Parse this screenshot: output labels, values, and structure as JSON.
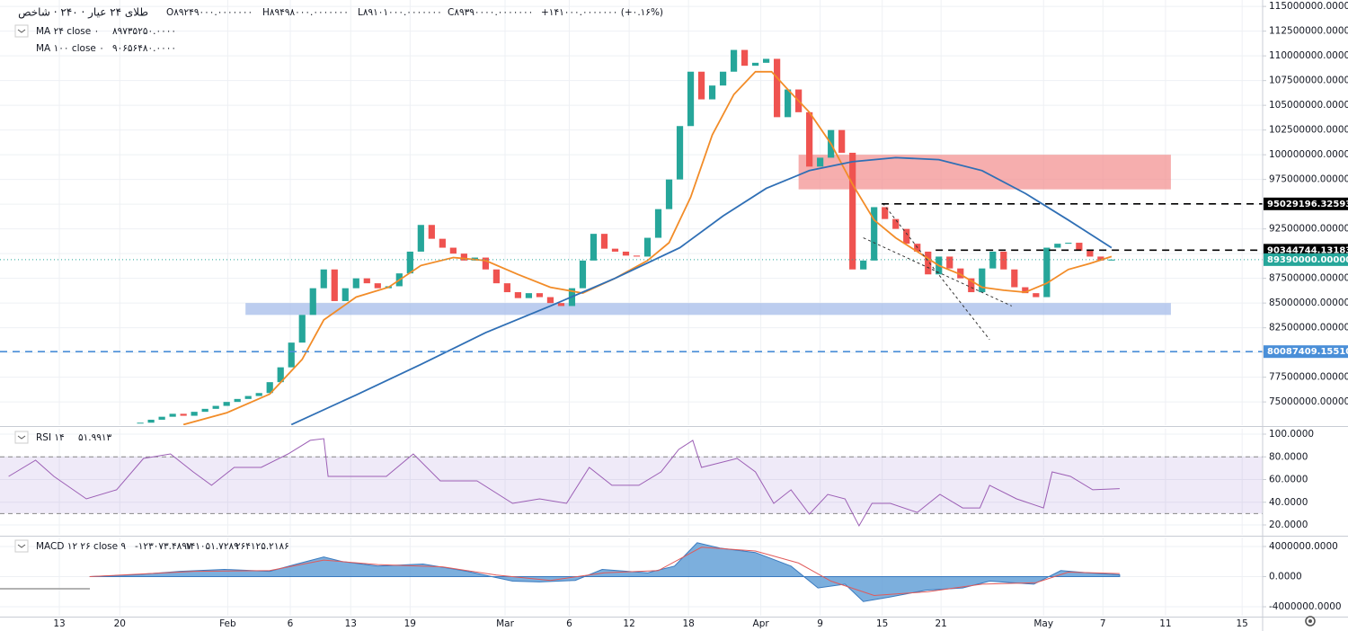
{
  "chart_data": [
    {
      "type": "candlestick",
      "title": "طلای ۲۴ عیار · ۲۴۰ · شاخص",
      "ohlc_text": [
        "O۸۹۲۴۹۰۰۰.۰۰۰۰۰۰۰",
        "H۸۹۴۹۸۰۰۰.۰۰۰۰۰۰۰",
        "L۸۹۱۰۱۰۰۰.۰۰۰۰۰۰۰",
        "C۸۹۳۹۰۰۰۰.۰۰۰۰۰۰۰",
        "+۱۴۱۰۰۰.۰۰۰۰۰۰۰ (+۰.۱۶%)"
      ],
      "xlim": [
        -13,
        104
      ],
      "ylim": [
        72650000,
        115650000
      ],
      "yticks": [
        {
          "value": 75000000,
          "label": "75000000.0000000"
        },
        {
          "value": 77500000,
          "label": "77500000.0000000"
        },
        {
          "value": 80000000,
          "label": "80000000.0000000"
        },
        {
          "value": 82500000,
          "label": "82500000.0000000"
        },
        {
          "value": 85000000,
          "label": "85000000.0000000"
        },
        {
          "value": 87500000,
          "label": "87500000.0000000"
        },
        {
          "value": 90000000,
          "label": "90000000.0000000"
        },
        {
          "value": 92500000,
          "label": "92500000.0000000"
        },
        {
          "value": 95000000,
          "label": "95000000.0000000"
        },
        {
          "value": 97500000,
          "label": "97500000.0000000"
        },
        {
          "value": 100000000,
          "label": "100000000.0000000"
        },
        {
          "value": 102500000,
          "label": "102500000.0000000"
        },
        {
          "value": 105000000,
          "label": "105000000.0000000"
        },
        {
          "value": 107500000,
          "label": "107500000.0000000"
        },
        {
          "value": 110000000,
          "label": "110000000.0000000"
        },
        {
          "value": 112500000,
          "label": "112500000.0000000"
        },
        {
          "value": 115000000,
          "label": "115000000.0000000"
        }
      ],
      "up_color": "#26a69a",
      "down_color": "#ef5350",
      "close": [
        72900000,
        73200000,
        73500000,
        73800000,
        73600000,
        74000000,
        74300000,
        74600000,
        75000000,
        75300000,
        75600000,
        75900000,
        77000000,
        78500000,
        81000000,
        83800000,
        86500000,
        88400000,
        85200000,
        86500000,
        87500000,
        87000000,
        86500000,
        86700000,
        88000000,
        90200000,
        92900000,
        91500000,
        90600000,
        90000000,
        89300000,
        89600000,
        88400000,
        87000000,
        86100000,
        85500000,
        86000000,
        85600000,
        85000000,
        84700000,
        86500000,
        89300000,
        92000000,
        90500000,
        90200000,
        89800000,
        89700000,
        91600000,
        94500000,
        97500000,
        102900000,
        108400000,
        105600000,
        107000000,
        108400000,
        110600000,
        109000000,
        109300000,
        109700000,
        103800000,
        106600000,
        104300000,
        98800000,
        99700000,
        102500000,
        100200000,
        88400000,
        89300000,
        94700000,
        93500000,
        92500000,
        91000000,
        90200000,
        87900000,
        89700000,
        88500000,
        87500000,
        86100000,
        88500000,
        90200000,
        88400000,
        86600000,
        86000000,
        85600000,
        90600000,
        91000000,
        91100000,
        90300000,
        89700000,
        89300000,
        89400000
      ],
      "series": [
        {
          "name": "MA ۲۴ close ۰",
          "value_label": "۸۹۷۳۵۲۵۰.۰۰۰۰",
          "color": "#f28c28",
          "x": [
            4,
            8,
            12,
            15,
            17,
            20,
            23,
            26,
            29,
            32,
            35,
            38,
            41,
            44,
            47,
            49,
            51,
            53,
            55,
            57,
            58.5,
            60,
            62,
            64,
            66,
            68,
            70,
            72,
            74,
            76,
            78,
            80,
            82,
            84,
            86,
            88,
            90
          ],
          "values": [
            72700000,
            73900000,
            75800000,
            79300000,
            83300000,
            85600000,
            86600000,
            88800000,
            89600000,
            89300000,
            87900000,
            86600000,
            86000000,
            87500000,
            89300000,
            91100000,
            95700000,
            102000000,
            106100000,
            108400000,
            108400000,
            106600000,
            104300000,
            101100000,
            97000000,
            93400000,
            91600000,
            90200000,
            88800000,
            87900000,
            86600000,
            86300000,
            86100000,
            87000000,
            88400000,
            89000000,
            89700000
          ]
        },
        {
          "name": "MA ۱۰۰ close ۰",
          "value_label": "۹۰۶۵۶۴۸۰.۰۰۰۰",
          "color": "#2f6fb5",
          "x": [
            14,
            20,
            26,
            32,
            38,
            44,
            50,
            54,
            58,
            62,
            66,
            70,
            74,
            78,
            82,
            86,
            90
          ],
          "values": [
            72700000,
            75700000,
            78800000,
            82000000,
            84700000,
            87500000,
            90600000,
            93800000,
            96600000,
            98400000,
            99300000,
            99700000,
            99500000,
            98400000,
            96100000,
            93400000,
            90600000
          ]
        }
      ],
      "zones": [
        {
          "x": [
            61,
            95.5
          ],
          "y": [
            96500000,
            100000000
          ],
          "color": "#f28b8b"
        },
        {
          "x": [
            9.75,
            95.5
          ],
          "y": [
            83800000,
            85000000
          ],
          "color": "#9fb8e8"
        }
      ],
      "levels": [
        {
          "value": 95029196.3259314,
          "label": "95029196.3259314",
          "x_start": 68.7,
          "color": "#000000",
          "dash": "8 6"
        },
        {
          "value": 90344744.1318353,
          "label": "90344744.1318353",
          "x_start": 73.7,
          "color": "#000000",
          "dash": "8 6"
        },
        {
          "value": 89390000,
          "label": "89390000.0000000",
          "color": "#26a69a",
          "dash": "1 3"
        },
        {
          "value": 80087409.1551078,
          "label": "80087409.1551078",
          "color": "#4a8fd8",
          "dash": "8 6"
        }
      ],
      "trendlines": [
        {
          "x": [
            68.8,
            78.7
          ],
          "y": [
            95100000,
            81300000
          ]
        },
        {
          "x": [
            67,
            80.75
          ],
          "y": [
            91600000,
            84700000
          ]
        }
      ]
    },
    {
      "type": "line",
      "title": "RSI ۱۴",
      "value_label": "۵۱.۹۹۱۳",
      "xlim": [
        -13,
        104
      ],
      "ylim": [
        11.3,
        104.75
      ],
      "yticks": [
        {
          "value": 20,
          "label": "20.0000"
        },
        {
          "value": 40,
          "label": "40.0000"
        },
        {
          "value": 60,
          "label": "60.0000"
        },
        {
          "value": 80,
          "label": "80.0000"
        },
        {
          "value": 100,
          "label": "100.0000"
        }
      ],
      "band": [
        30,
        80
      ],
      "band_color": "#9575cd",
      "series": [
        {
          "color": "#9c5fb5",
          "x": [
            -12.2,
            -9.7,
            -8,
            -5,
            -2.2,
            0.3,
            2.8,
            4.9,
            6.6,
            8.7,
            11.2,
            13.7,
            15.75,
            17,
            17.4,
            20.3,
            22.8,
            25.3,
            27.8,
            31.2,
            34.5,
            37,
            39.5,
            41.6,
            43.7,
            46.2,
            48.25,
            49.9,
            51.2,
            52,
            55.3,
            57,
            58.7,
            60.3,
            62,
            63.7,
            65.3,
            66.6,
            67.8,
            69.5,
            72,
            74.1,
            76.2,
            77.8,
            78.7,
            81.2,
            83.7,
            84.5,
            86.2,
            88.25,
            90.75
          ],
          "values": [
            62.8,
            77,
            62.8,
            43,
            51,
            78.6,
            82.6,
            66.7,
            54.9,
            70.7,
            70.7,
            82.6,
            94.5,
            96,
            62.8,
            62.8,
            62.8,
            82.6,
            58.8,
            58.8,
            39,
            43,
            39,
            70.7,
            54.9,
            54.9,
            66.7,
            86.5,
            94.5,
            70.7,
            78.6,
            66.7,
            39,
            51,
            29.5,
            46.9,
            43,
            19.2,
            39,
            39,
            31,
            46.9,
            35,
            35,
            54.9,
            43,
            35,
            66.7,
            62.8,
            51,
            51.99
          ]
        }
      ]
    },
    {
      "type": "area",
      "title": "MACD ۱۲ ۲۶ close ۹",
      "legend_values": [
        "-۱۲۳۰۷۳.۴۸۹۷",
        "۱۴۱۰۵۱.۷۲۸۹",
        "۲۶۴۱۲۵.۲۱۸۶"
      ],
      "legend_colors": [
        "#e04848",
        "#2f6fb5",
        "#e04848"
      ],
      "xlim": [
        -13,
        104
      ],
      "ylim": [
        -5190000,
        5190000
      ],
      "yticks": [
        {
          "value": -4000000,
          "label": "-4000000.0000"
        },
        {
          "value": 0,
          "label": "0.0000"
        },
        {
          "value": 4000000,
          "label": "4000000.0000"
        }
      ],
      "xticks": [
        {
          "value": -7.5,
          "label": "13"
        },
        {
          "value": -1.9,
          "label": "20"
        },
        {
          "value": 8.1,
          "label": "Feb"
        },
        {
          "value": 13.9,
          "label": "6"
        },
        {
          "value": 19.5,
          "label": "13"
        },
        {
          "value": 25,
          "label": "19"
        },
        {
          "value": 33.8,
          "label": "Mar"
        },
        {
          "value": 39.75,
          "label": "6"
        },
        {
          "value": 45.3,
          "label": "12"
        },
        {
          "value": 50.8,
          "label": "18"
        },
        {
          "value": 57.5,
          "label": "Apr"
        },
        {
          "value": 63,
          "label": "9"
        },
        {
          "value": 68.75,
          "label": "15"
        },
        {
          "value": 74.2,
          "label": "21"
        },
        {
          "value": 83.7,
          "label": "May"
        },
        {
          "value": 89.2,
          "label": "7"
        },
        {
          "value": 95,
          "label": "11"
        },
        {
          "value": 102.1,
          "label": "15"
        }
      ],
      "series": [
        {
          "color": "#5b9bd5",
          "x": [
            -4.7,
            -0.5,
            3.7,
            7.8,
            12,
            14.5,
            17,
            18.7,
            22,
            26.2,
            30.3,
            34.5,
            37,
            40.3,
            42.8,
            47,
            49.5,
            51.6,
            53.7,
            57,
            60.3,
            62.8,
            65.3,
            67,
            69.5,
            72.8,
            76.2,
            78.7,
            82.8,
            85.3,
            87.8,
            90.75
          ],
          "values": [
            0,
            240000,
            700000,
            950000,
            700000,
            1670000,
            2600000,
            2000000,
            1400000,
            1670000,
            700000,
            -600000,
            -700000,
            -500000,
            950000,
            500000,
            1400000,
            4500000,
            3800000,
            3200000,
            1400000,
            -1500000,
            -1000000,
            -3300000,
            -2700000,
            -1800000,
            -1500000,
            -600000,
            -1000000,
            800000,
            500000,
            240000
          ]
        },
        {
          "color": "#e05a5a",
          "x": [
            -4.7,
            5,
            12,
            17,
            22,
            28,
            33,
            38,
            43,
            48,
            52,
            57,
            61,
            64,
            68,
            73,
            78,
            83,
            86,
            90.75
          ],
          "values": [
            0,
            700000,
            800000,
            2200000,
            1600000,
            1300000,
            200000,
            -500000,
            500000,
            800000,
            3900000,
            3400000,
            1800000,
            -600000,
            -2500000,
            -2000000,
            -1000000,
            -800000,
            600000,
            400000
          ]
        }
      ]
    }
  ]
}
